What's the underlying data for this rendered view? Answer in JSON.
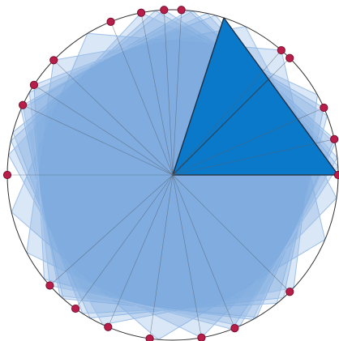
{
  "diagram": {
    "vertex_angles_deg": [
      0,
      12.5,
      24,
      45,
      49,
      87,
      93,
      101,
      112,
      136,
      147,
      155,
      180,
      222,
      234,
      247,
      262,
      280,
      292,
      315
    ],
    "pentagons": [
      {
        "start_deg": 0,
        "highlighted": true
      },
      {
        "start_deg": 12.5,
        "highlighted": false
      },
      {
        "start_deg": 24,
        "highlighted": false
      },
      {
        "start_deg": 49,
        "highlighted": false
      },
      {
        "start_deg": 93,
        "highlighted": false
      },
      {
        "start_deg": 101,
        "highlighted": false
      },
      {
        "start_deg": 136,
        "highlighted": false
      },
      {
        "start_deg": 147,
        "highlighted": false
      },
      {
        "start_deg": 155,
        "highlighted": false
      },
      {
        "start_deg": 222,
        "highlighted": false
      }
    ],
    "highlighted_triangle_deg": [
      0,
      72
    ],
    "highlight_split_deg": 45,
    "colors": {
      "circle": "#333333",
      "vertex_fill": "#b81e4a",
      "vertex_stroke": "#7a0f2e",
      "pentagon_fill": "#7aaae0",
      "pentagon_stroke": "#9dbfe8",
      "highlight_fill": "#0a79c9",
      "highlight_stroke": "#1c2f45",
      "spoke": "#55606a"
    }
  }
}
